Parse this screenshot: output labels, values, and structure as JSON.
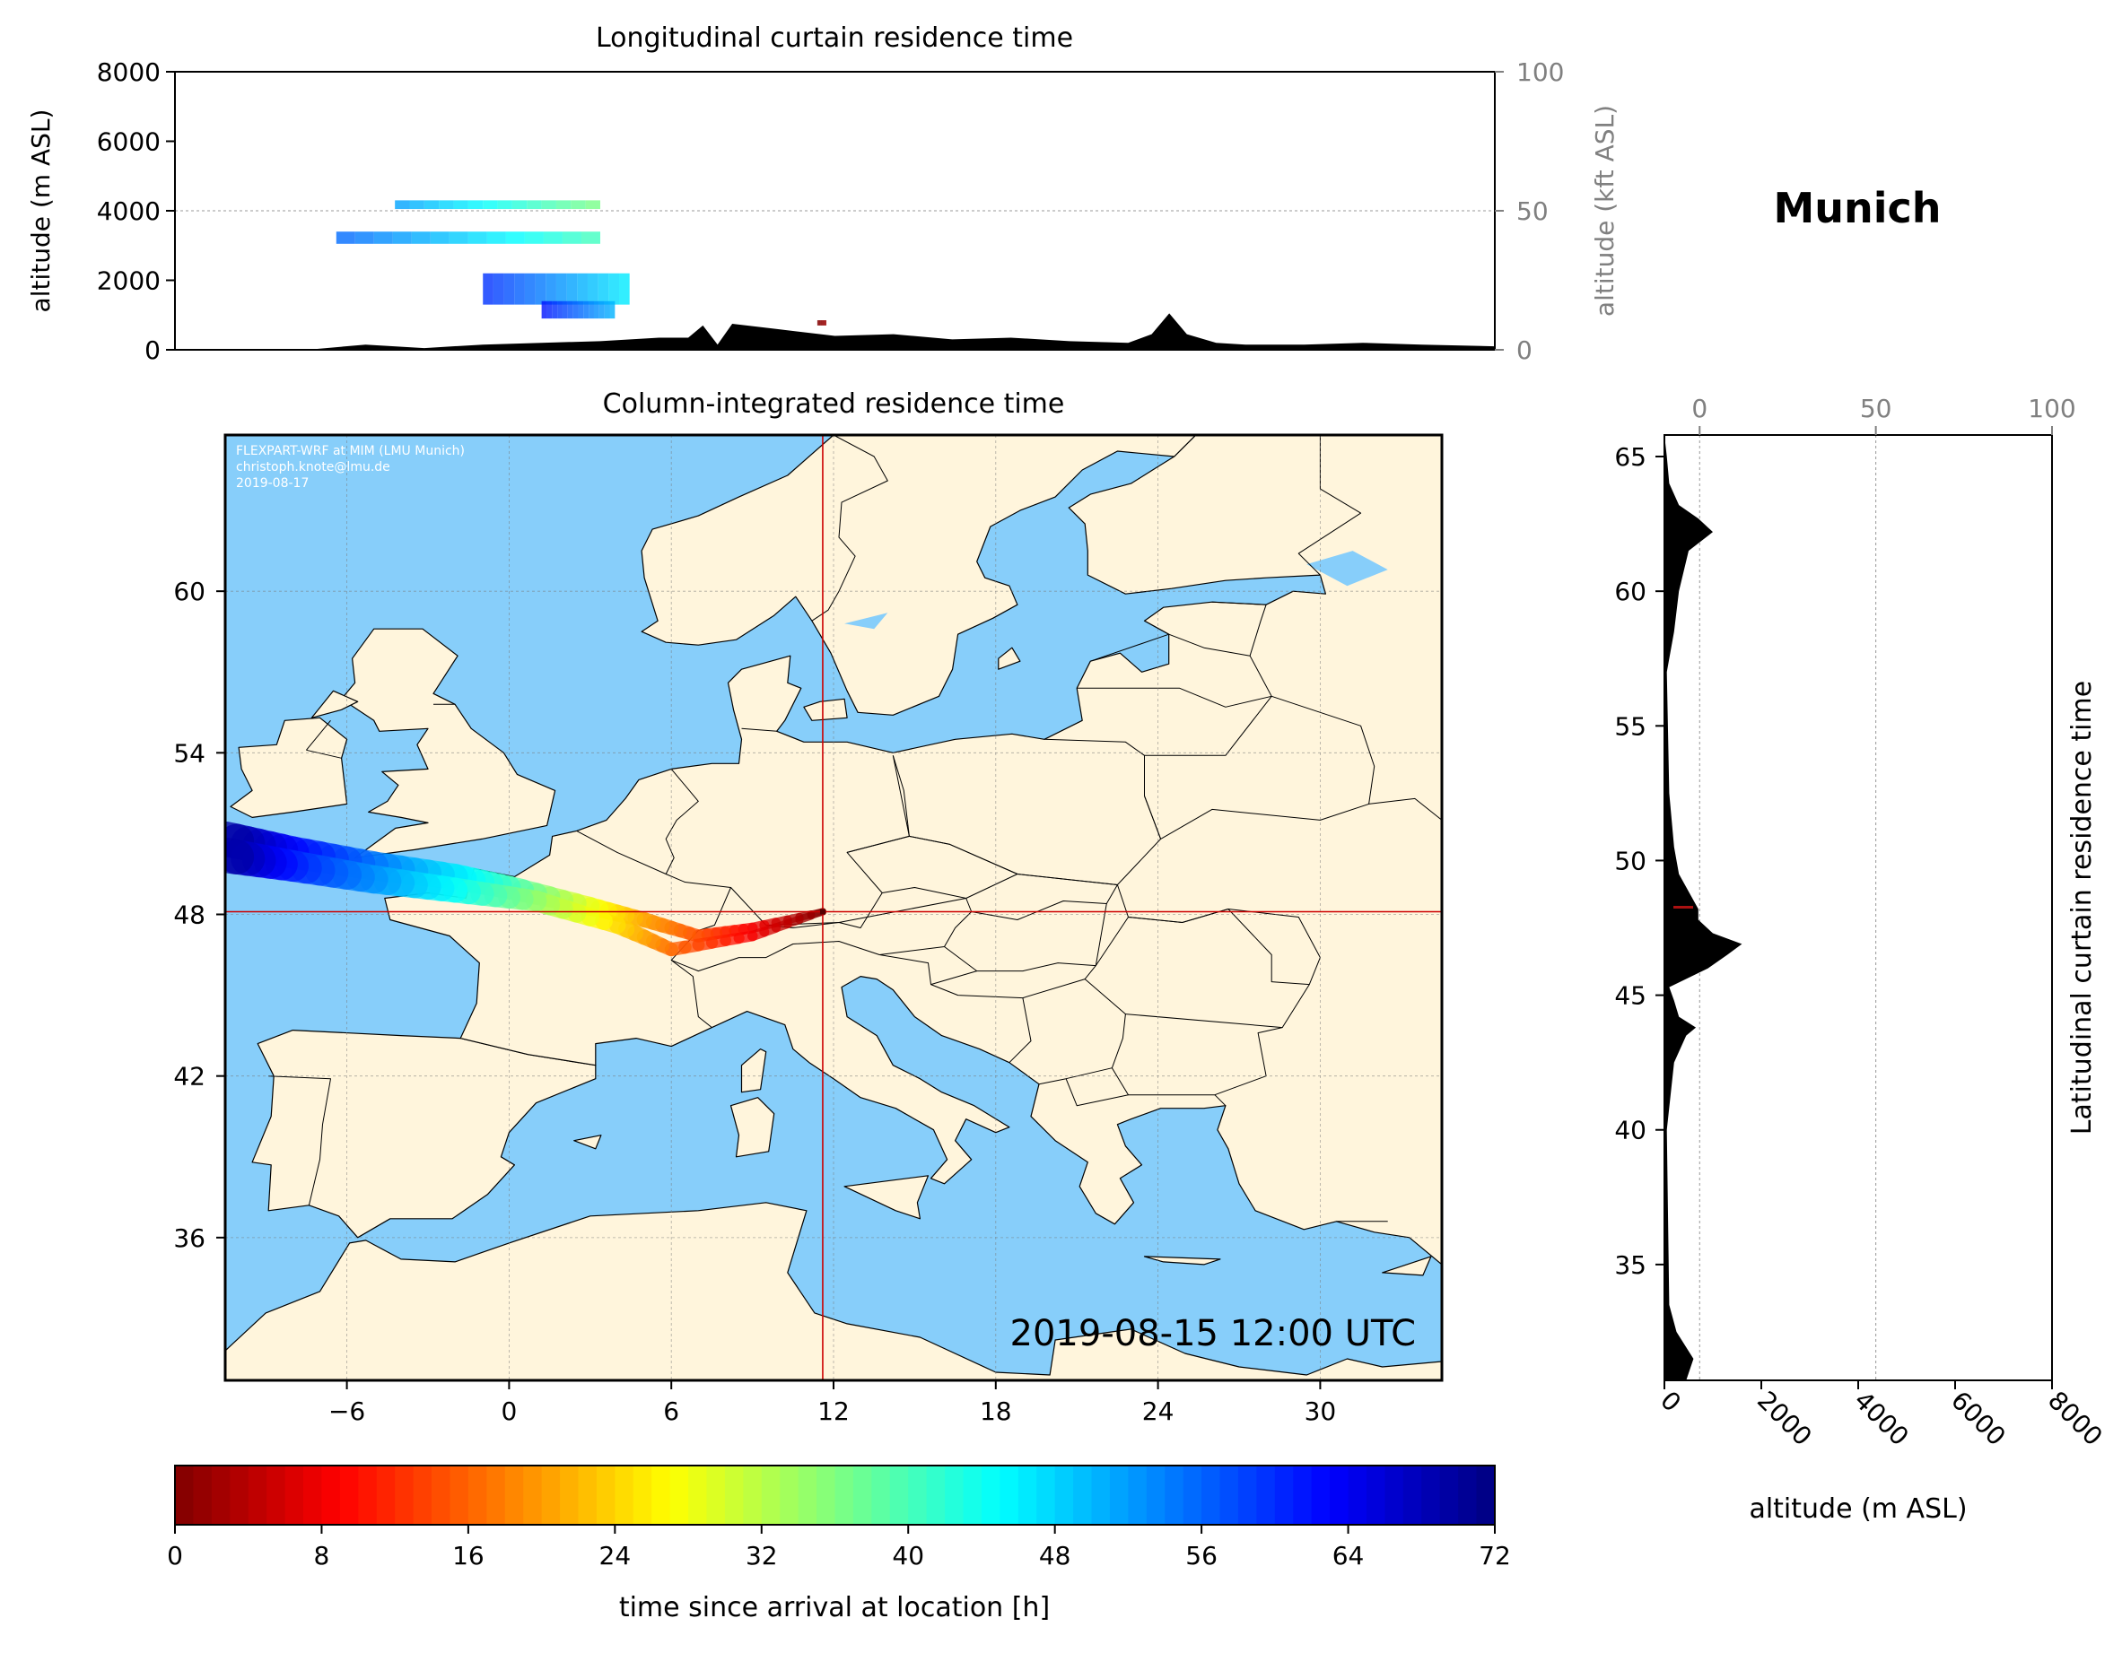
{
  "location": "Munich",
  "top_panel": {
    "title": "Longitudinal curtain residence time",
    "ylabel_left": "altitude (m ASL)",
    "ylabel_right": "altitude (kft ASL)",
    "yticks_left": [
      "0",
      "2000",
      "4000",
      "6000",
      "8000"
    ],
    "yticks_right": [
      "0",
      "50",
      "100"
    ]
  },
  "map_panel": {
    "title": "Column-integrated residence time",
    "credit_lines": [
      "FLEXPART-WRF at MIM (LMU Munich)",
      "christoph.knote@lmu.de",
      "2019-08-17"
    ],
    "timestamp": "2019-08-15 12:00 UTC",
    "xticks": [
      "−6",
      "0",
      "6",
      "12",
      "18",
      "24",
      "30"
    ],
    "yticks": [
      "36",
      "42",
      "48",
      "54",
      "60"
    ],
    "crosshair": {
      "lon": 11.6,
      "lat": 48.1
    },
    "colors": {
      "ocean": "#87CEFA",
      "land": "#FFF5DC",
      "crosshair": "#CC0000"
    }
  },
  "side_panel": {
    "ylabel_right": "Latitudinal curtain residence time",
    "xlabel": "altitude (m ASL)",
    "xticks_bottom": [
      "0",
      "2000",
      "4000",
      "6000",
      "8000"
    ],
    "xticks_top": [
      "0",
      "50",
      "100"
    ],
    "yticks": [
      "35",
      "40",
      "45",
      "50",
      "55",
      "60",
      "65"
    ]
  },
  "colorbar": {
    "label": "time since arrival at location [h]",
    "ticks": [
      "0",
      "8",
      "16",
      "24",
      "32",
      "40",
      "48",
      "56",
      "64",
      "72"
    ],
    "colormap": "jet_r"
  },
  "chart_data": [
    {
      "type": "area",
      "title": "Longitudinal curtain residence time",
      "xlabel": "",
      "ylabel": "altitude (m ASL)",
      "ylim": [
        0,
        8000
      ],
      "y2label": "altitude (kft ASL)",
      "y2lim": [
        0,
        100
      ],
      "xlim": [
        -10.5,
        34.5
      ],
      "grid": true,
      "series": [
        {
          "name": "",
          "x": [
            -10.5,
            -6,
            -4,
            -2,
            0,
            2,
            4,
            6,
            7,
            7.5,
            8,
            8.5,
            10,
            12,
            14,
            16,
            18,
            20,
            22,
            22.8,
            23.4,
            24,
            25,
            26,
            28,
            30,
            32,
            34.5
          ],
          "y": [
            0,
            0,
            150,
            50,
            150,
            200,
            250,
            350,
            350,
            700,
            150,
            750,
            600,
            400,
            450,
            300,
            350,
            250,
            200,
            450,
            1050,
            450,
            200,
            150,
            150,
            200,
            150,
            100
          ]
        }
      ],
      "plume": [
        {
          "lon": [
            -5,
            4
          ],
          "alt": [
            3050,
            3400
          ],
          "age_h": [
            56,
            40
          ]
        },
        {
          "lon": [
            -3,
            4
          ],
          "alt": [
            4050,
            4300
          ],
          "age_h": [
            52,
            36
          ]
        },
        {
          "lon": [
            0,
            5
          ],
          "alt": [
            1300,
            2200
          ],
          "age_h": [
            60,
            46
          ]
        },
        {
          "lon": [
            2,
            4.5
          ],
          "alt": [
            900,
            1400
          ],
          "age_h": [
            62,
            50
          ]
        },
        {
          "lon": [
            11.4,
            11.7
          ],
          "alt": [
            700,
            850
          ],
          "age_h": [
            0,
            2
          ]
        }
      ]
    },
    {
      "type": "area",
      "title": "Latitudinal curtain residence time",
      "xlabel": "altitude (m ASL)",
      "xlim": [
        0,
        8000
      ],
      "x2lim": [
        0,
        100
      ],
      "ylim": [
        30.7,
        65.8
      ],
      "grid": true,
      "series": [
        {
          "name": "",
          "lat": [
            30.7,
            31.5,
            32.5,
            33.5,
            40,
            42.5,
            43.5,
            43.8,
            44.2,
            44.8,
            45.3,
            46,
            46.5,
            46.9,
            47.3,
            47.8,
            48.2,
            49.5,
            50.5,
            52.5,
            57,
            58.5,
            60,
            61.5,
            62.2,
            62.7,
            63.2,
            64,
            65,
            65.8
          ],
          "alt": [
            450,
            600,
            250,
            100,
            50,
            200,
            450,
            650,
            300,
            200,
            100,
            900,
            1300,
            1600,
            1000,
            700,
            700,
            300,
            200,
            100,
            50,
            200,
            300,
            500,
            1000,
            700,
            300,
            100,
            50,
            0
          ]
        }
      ]
    },
    {
      "type": "heatmap",
      "title": "Column-integrated residence time",
      "xlabel": "",
      "ylabel": "",
      "xlim": [
        -10.5,
        34.5
      ],
      "ylim": [
        30.7,
        65.8
      ],
      "xticks": [
        -6,
        0,
        6,
        12,
        18,
        24,
        30
      ],
      "yticks": [
        36,
        42,
        48,
        54,
        60
      ],
      "trajectories": [
        {
          "lon": [
            11.6,
            9,
            7,
            5,
            3,
            0,
            -2,
            -5,
            -8,
            -10.5
          ],
          "lat": [
            48.1,
            47.5,
            47.2,
            47.8,
            48.3,
            49,
            49.4,
            49.8,
            50.3,
            50.8
          ],
          "age_h": [
            0,
            8,
            14,
            20,
            28,
            40,
            46,
            54,
            62,
            70
          ]
        },
        {
          "lon": [
            11.6,
            9,
            6,
            4,
            1,
            -2,
            -5,
            -8,
            -10.5
          ],
          "lat": [
            48.1,
            47.2,
            46.7,
            47.6,
            48.5,
            48.9,
            49.3,
            49.8,
            50.2
          ],
          "age_h": [
            0,
            8,
            16,
            24,
            34,
            44,
            52,
            60,
            70
          ]
        }
      ]
    }
  ]
}
